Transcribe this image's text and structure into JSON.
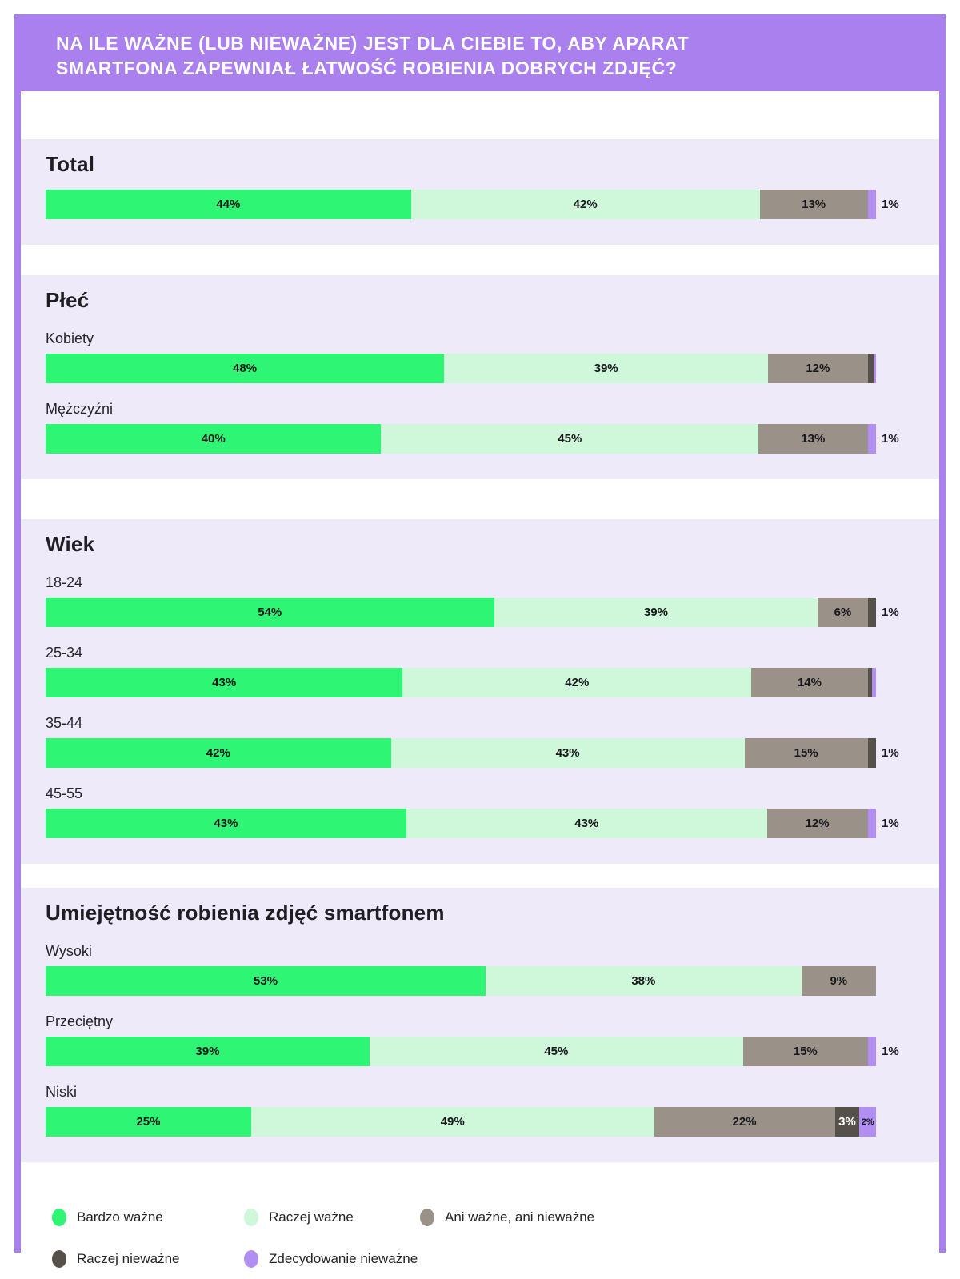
{
  "header": {
    "title": "NA ILE WAŻNE (LUB NIEWAŻNE) JEST DLA CIEBIE TO, ABY APARAT SMARTFONA ZAPEWNIAŁ ŁATWOŚĆ ROBIENIA DOBRYCH ZDJĘĆ?"
  },
  "colors": {
    "frame_purple": "#aa80ef",
    "section_bg": "#efeafa",
    "very_important": "#2ef573",
    "rather_important": "#cff7d9",
    "neutral": "#9a9289",
    "rather_unimportant": "#56504b",
    "definitely_unimportant": "#b18ff2"
  },
  "chart_data": {
    "type": "bar",
    "variant": "horizontal-stacked-100",
    "unit": "%",
    "title": "NA ILE WAŻNE (LUB NIEWAŻNE) JEST DLA CIEBIE TO, ABY APARAT SMARTFONA ZAPEWNIAŁ ŁATWOŚĆ ROBIENIA DOBRYCH ZDJĘĆ?",
    "legend_position": "bottom",
    "series_order": [
      "very_important",
      "rather_important",
      "neutral",
      "rather_unimportant",
      "definitely_unimportant"
    ],
    "legend": [
      {
        "key": "very_important",
        "label": "Bardzo ważne"
      },
      {
        "key": "rather_important",
        "label": "Raczej ważne"
      },
      {
        "key": "neutral",
        "label": "Ani ważne, ani nieważne"
      },
      {
        "key": "rather_unimportant",
        "label": "Raczej nieważne"
      },
      {
        "key": "definitely_unimportant",
        "label": "Zdecydowanie nieważne"
      }
    ],
    "sections": [
      {
        "title": "Total",
        "rows": [
          {
            "label": "",
            "segments": [
              {
                "key": "very_important",
                "value": 44,
                "label": "44%",
                "label_pos": "inside"
              },
              {
                "key": "rather_important",
                "value": 42,
                "label": "42%",
                "label_pos": "inside"
              },
              {
                "key": "neutral",
                "value": 13,
                "label": "13%",
                "label_pos": "inside"
              },
              {
                "key": "definitely_unimportant",
                "value": 1,
                "label": "1%",
                "label_pos": "outside"
              }
            ]
          }
        ]
      },
      {
        "title": "Płeć",
        "rows": [
          {
            "label": "Kobiety",
            "segments": [
              {
                "key": "very_important",
                "value": 48,
                "label": "48%",
                "label_pos": "inside"
              },
              {
                "key": "rather_important",
                "value": 39,
                "label": "39%",
                "label_pos": "inside"
              },
              {
                "key": "neutral",
                "value": 12,
                "label": "12%",
                "label_pos": "inside"
              },
              {
                "key": "rather_unimportant",
                "value": 0.7,
                "label": null,
                "label_pos": "none"
              },
              {
                "key": "definitely_unimportant",
                "value": 0.3,
                "label": null,
                "label_pos": "none"
              }
            ]
          },
          {
            "label": "Mężczyźni",
            "segments": [
              {
                "key": "very_important",
                "value": 40,
                "label": "40%",
                "label_pos": "inside"
              },
              {
                "key": "rather_important",
                "value": 45,
                "label": "45%",
                "label_pos": "inside"
              },
              {
                "key": "neutral",
                "value": 13,
                "label": "13%",
                "label_pos": "inside"
              },
              {
                "key": "definitely_unimportant",
                "value": 1,
                "label": "1%",
                "label_pos": "outside"
              }
            ]
          }
        ]
      },
      {
        "title": "Wiek",
        "rows": [
          {
            "label": "18-24",
            "segments": [
              {
                "key": "very_important",
                "value": 54,
                "label": "54%",
                "label_pos": "inside"
              },
              {
                "key": "rather_important",
                "value": 39,
                "label": "39%",
                "label_pos": "inside"
              },
              {
                "key": "neutral",
                "value": 6,
                "label": "6%",
                "label_pos": "inside"
              },
              {
                "key": "rather_unimportant",
                "value": 1,
                "label": "1%",
                "label_pos": "outside"
              }
            ]
          },
          {
            "label": "25-34",
            "segments": [
              {
                "key": "very_important",
                "value": 43,
                "label": "43%",
                "label_pos": "inside"
              },
              {
                "key": "rather_important",
                "value": 42,
                "label": "42%",
                "label_pos": "inside"
              },
              {
                "key": "neutral",
                "value": 14,
                "label": "14%",
                "label_pos": "inside"
              },
              {
                "key": "rather_unimportant",
                "value": 0.5,
                "label": null,
                "label_pos": "none"
              },
              {
                "key": "definitely_unimportant",
                "value": 0.5,
                "label": null,
                "label_pos": "none"
              }
            ]
          },
          {
            "label": "35-44",
            "segments": [
              {
                "key": "very_important",
                "value": 42,
                "label": "42%",
                "label_pos": "inside"
              },
              {
                "key": "rather_important",
                "value": 43,
                "label": "43%",
                "label_pos": "inside"
              },
              {
                "key": "neutral",
                "value": 15,
                "label": "15%",
                "label_pos": "inside"
              },
              {
                "key": "rather_unimportant",
                "value": 1,
                "label": "1%",
                "label_pos": "outside"
              }
            ]
          },
          {
            "label": "45-55",
            "segments": [
              {
                "key": "very_important",
                "value": 43,
                "label": "43%",
                "label_pos": "inside"
              },
              {
                "key": "rather_important",
                "value": 43,
                "label": "43%",
                "label_pos": "inside"
              },
              {
                "key": "neutral",
                "value": 12,
                "label": "12%",
                "label_pos": "inside"
              },
              {
                "key": "definitely_unimportant",
                "value": 1,
                "label": "1%",
                "label_pos": "outside"
              }
            ]
          }
        ]
      },
      {
        "title": "Umiejętność robienia zdjęć smartfonem",
        "rows": [
          {
            "label": "Wysoki",
            "segments": [
              {
                "key": "very_important",
                "value": 53,
                "label": "53%",
                "label_pos": "inside"
              },
              {
                "key": "rather_important",
                "value": 38,
                "label": "38%",
                "label_pos": "inside"
              },
              {
                "key": "neutral",
                "value": 9,
                "label": "9%",
                "label_pos": "inside"
              }
            ]
          },
          {
            "label": "Przeciętny",
            "segments": [
              {
                "key": "very_important",
                "value": 39,
                "label": "39%",
                "label_pos": "inside"
              },
              {
                "key": "rather_important",
                "value": 45,
                "label": "45%",
                "label_pos": "inside"
              },
              {
                "key": "neutral",
                "value": 15,
                "label": "15%",
                "label_pos": "inside"
              },
              {
                "key": "definitely_unimportant",
                "value": 1,
                "label": "1%",
                "label_pos": "outside"
              }
            ]
          },
          {
            "label": "Niski",
            "segments": [
              {
                "key": "very_important",
                "value": 25,
                "label": "25%",
                "label_pos": "inside"
              },
              {
                "key": "rather_important",
                "value": 49,
                "label": "49%",
                "label_pos": "inside"
              },
              {
                "key": "neutral",
                "value": 22,
                "label": "22%",
                "label_pos": "inside"
              },
              {
                "key": "rather_unimportant",
                "value": 3,
                "label": "3%",
                "label_pos": "inside-light"
              },
              {
                "key": "definitely_unimportant",
                "value": 2,
                "label": "2%",
                "label_pos": "inside-small"
              }
            ]
          }
        ]
      }
    ]
  }
}
